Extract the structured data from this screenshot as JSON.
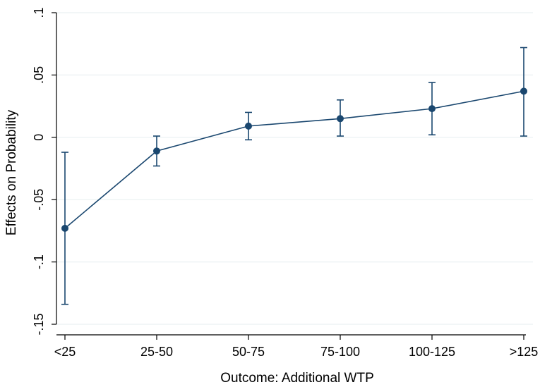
{
  "chart_data": {
    "type": "line",
    "title": "",
    "xlabel": "Outcome: Additional WTP",
    "ylabel": "Effects on Probability",
    "categories": [
      "<25",
      "25-50",
      "50-75",
      "75-100",
      "100-125",
      ">125"
    ],
    "values": [
      -0.073,
      -0.011,
      0.009,
      0.015,
      0.023,
      0.037
    ],
    "ci_low": [
      -0.134,
      -0.023,
      -0.002,
      0.001,
      0.002,
      0.001
    ],
    "ci_high": [
      -0.012,
      0.001,
      0.02,
      0.03,
      0.044,
      0.072
    ],
    "ylim": [
      -0.15,
      0.1
    ],
    "yticks": [
      -0.15,
      -0.1,
      -0.05,
      0,
      0.05,
      0.1
    ],
    "ytick_labels": [
      "-.15",
      "-.1",
      "-.05",
      "0",
      ".05",
      ".1"
    ],
    "grid": true,
    "colors": {
      "series": "#1a476f",
      "grid": "#eaf0f2",
      "axis": "#000000"
    }
  }
}
